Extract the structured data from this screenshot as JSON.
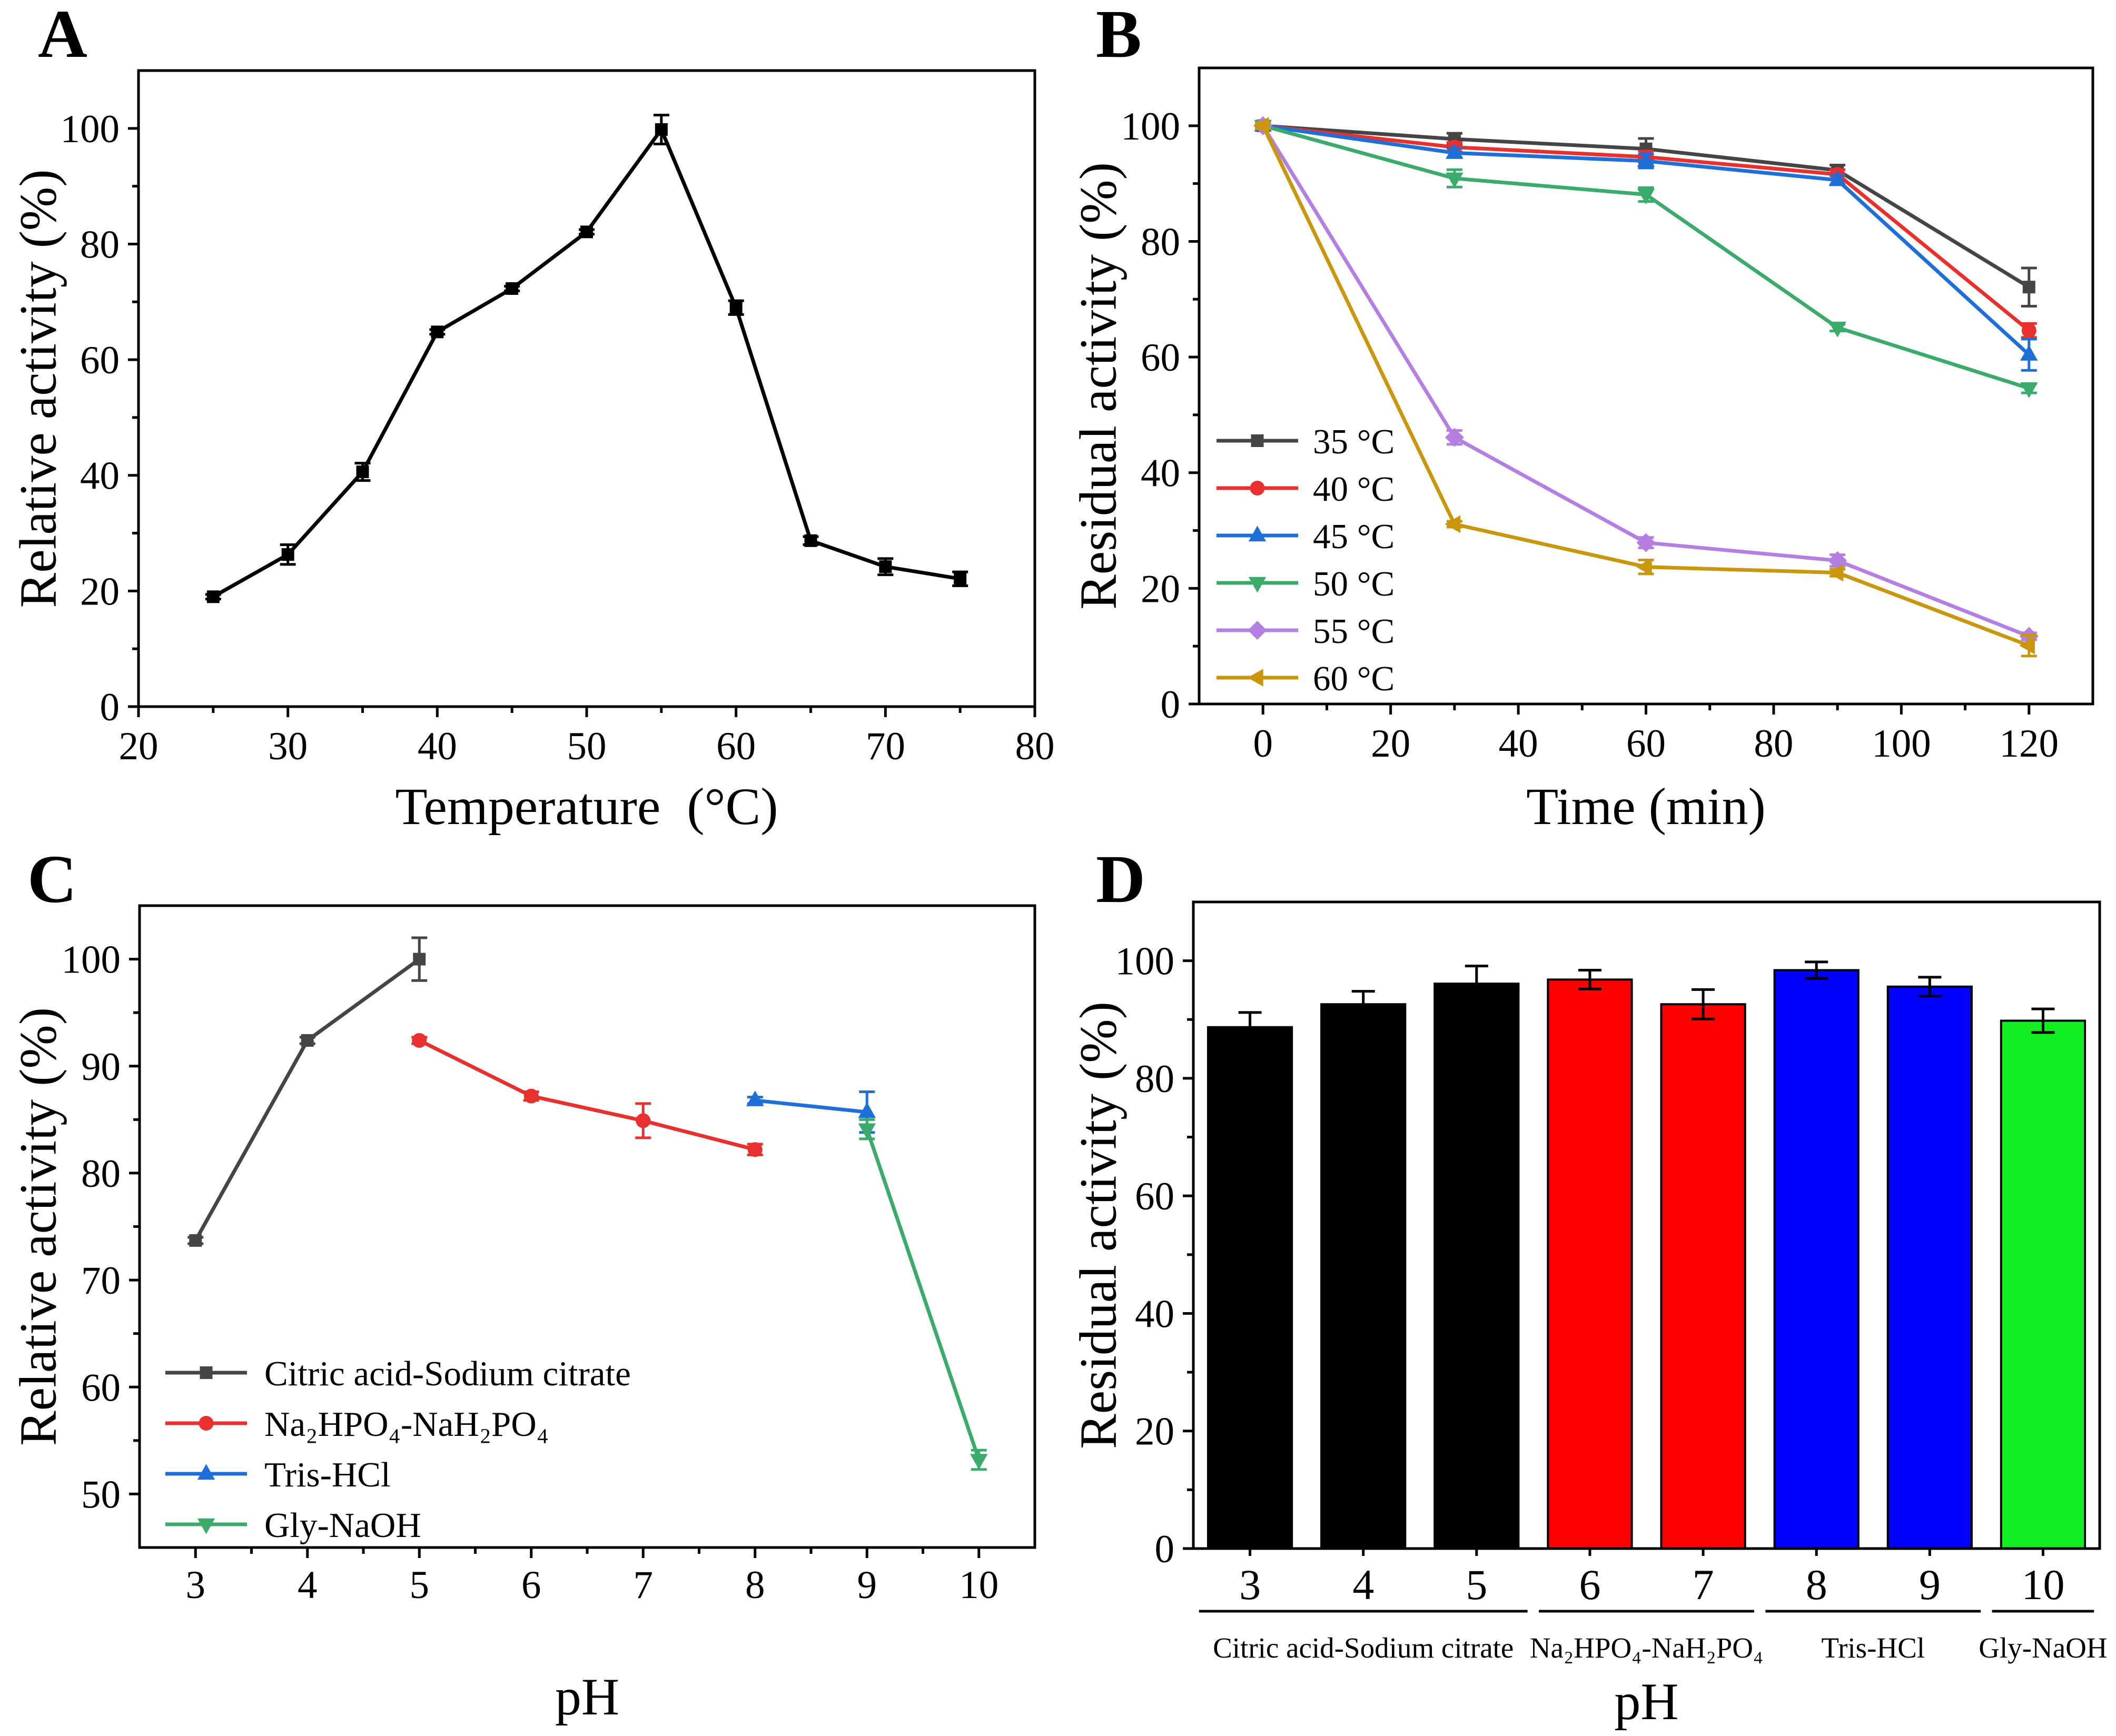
{
  "chart_data": [
    {
      "panel": "A",
      "type": "line",
      "xlabel": "Temperature  (°C)",
      "ylabel": "Relative activity (%)",
      "xlim": [
        20,
        80
      ],
      "ylim": [
        0,
        110
      ],
      "xticks": [
        20,
        30,
        40,
        50,
        60,
        70,
        80
      ],
      "yticks": [
        0,
        20,
        40,
        60,
        80,
        100
      ],
      "grid": false,
      "series": [
        {
          "color": "#000000",
          "marker": "square",
          "x": [
            25,
            30,
            35,
            40,
            45,
            50,
            55,
            60,
            65,
            70,
            75
          ],
          "y": [
            19.0,
            26.3,
            40.6,
            64.8,
            72.3,
            82.1,
            99.8,
            69.0,
            28.7,
            24.2,
            22.1
          ],
          "err": [
            0.4,
            1.7,
            1.5,
            0.4,
            0.4,
            0.4,
            2.5,
            1.2,
            0.7,
            1.4,
            1.2
          ]
        }
      ]
    },
    {
      "panel": "B",
      "type": "line",
      "xlabel": "Time (min)",
      "ylabel": "Residual activity (%)",
      "xlim": [
        -10,
        130
      ],
      "ylim": [
        0,
        110
      ],
      "xticks": [
        0,
        20,
        40,
        60,
        80,
        100,
        120
      ],
      "yticks": [
        0,
        20,
        40,
        60,
        80,
        100
      ],
      "grid": false,
      "legend": "bottom-left",
      "series": [
        {
          "name": "35 °C",
          "color": "#454545",
          "marker": "square",
          "x": [
            0,
            30,
            60,
            90,
            120
          ],
          "y": [
            100,
            97.7,
            96.0,
            92.3,
            72.1
          ],
          "err": [
            0.5,
            1.0,
            1.8,
            0.9,
            3.3
          ]
        },
        {
          "name": "40 °C",
          "color": "#e8302e",
          "marker": "circle",
          "x": [
            0,
            30,
            60,
            90,
            120
          ],
          "y": [
            100,
            96.3,
            94.6,
            91.6,
            64.6
          ],
          "err": [
            0.5,
            0.8,
            1.0,
            0.8,
            1.2
          ]
        },
        {
          "name": "45 °C",
          "color": "#1f6fd8",
          "marker": "triangle-up",
          "x": [
            0,
            30,
            60,
            90,
            120
          ],
          "y": [
            100,
            95.3,
            93.9,
            90.6,
            60.4
          ],
          "err": [
            0.5,
            0.8,
            1.2,
            0.8,
            2.7
          ]
        },
        {
          "name": "50 °C",
          "color": "#3aab6b",
          "marker": "triangle-down",
          "x": [
            0,
            30,
            60,
            90,
            120
          ],
          "y": [
            100,
            90.9,
            88.1,
            65.1,
            54.6
          ],
          "err": [
            0.5,
            1.5,
            1.2,
            0.6,
            0.8
          ]
        },
        {
          "name": "55 °C",
          "color": "#b57ee3",
          "marker": "diamond",
          "x": [
            0,
            30,
            60,
            90,
            120
          ],
          "y": [
            100,
            46.1,
            27.9,
            24.8,
            11.7
          ],
          "err": [
            0.5,
            1.2,
            0.9,
            1.0,
            0.6
          ]
        },
        {
          "name": "60 °C",
          "color": "#c9960c",
          "marker": "triangle-left",
          "x": [
            0,
            30,
            60,
            90,
            120
          ],
          "y": [
            100,
            31.1,
            23.7,
            22.7,
            10.1
          ],
          "err": [
            0.5,
            0.5,
            1.2,
            0.6,
            1.8
          ]
        }
      ]
    },
    {
      "panel": "C",
      "type": "line",
      "xlabel": "pH",
      "ylabel": "Relative activity (%)",
      "xlim": [
        2.5,
        10.5
      ],
      "ylim": [
        45,
        105
      ],
      "xticks": [
        3,
        4,
        5,
        6,
        7,
        8,
        9,
        10
      ],
      "yticks": [
        50,
        60,
        70,
        80,
        90,
        100
      ],
      "grid": false,
      "legend": "bottom-left",
      "series": [
        {
          "name": "Citric acid-Sodium citrate",
          "color": "#454545",
          "marker": "square",
          "x": [
            3,
            4,
            5
          ],
          "y": [
            73.7,
            92.4,
            100.0
          ],
          "err": [
            0.3,
            0.3,
            2.0
          ]
        },
        {
          "name": "Na₂HPO₄-NaH₂PO₄",
          "color": "#e8302e",
          "marker": "circle",
          "x": [
            5,
            6,
            7,
            8
          ],
          "y": [
            92.4,
            87.2,
            84.9,
            82.2
          ],
          "err": [
            0.3,
            0.4,
            1.6,
            0.5
          ]
        },
        {
          "name": "Tris-HCl",
          "color": "#1f6fd8",
          "marker": "triangle-up",
          "x": [
            8,
            9
          ],
          "y": [
            86.8,
            85.7
          ],
          "err": [
            0.3,
            1.9
          ]
        },
        {
          "name": "Gly-NaOH",
          "color": "#3aab6b",
          "marker": "triangle-down",
          "x": [
            9,
            10
          ],
          "y": [
            84.1,
            53.2
          ],
          "err": [
            0.9,
            0.9
          ]
        }
      ]
    },
    {
      "panel": "D",
      "type": "bar",
      "xlabel": "pH",
      "ylabel": "Residual activity (%)",
      "ylim": [
        0,
        110
      ],
      "yticks": [
        0,
        20,
        40,
        60,
        80,
        100
      ],
      "grid": false,
      "categories": [
        "3",
        "4",
        "5",
        "6",
        "7",
        "8",
        "9",
        "10"
      ],
      "values": [
        88.7,
        92.6,
        96.1,
        96.8,
        92.6,
        98.4,
        95.6,
        89.8
      ],
      "err": [
        2.5,
        2.2,
        3.0,
        1.6,
        2.5,
        1.4,
        1.6,
        2.0
      ],
      "groups": [
        {
          "label": "Citric acid-Sodium citrate",
          "start": 0,
          "end": 2,
          "color": "#000000"
        },
        {
          "label": "Na₂HPO₄-NaH₂PO₄",
          "start": 3,
          "end": 4,
          "color": "#ff0000"
        },
        {
          "label": "Tris-HCl",
          "start": 5,
          "end": 6,
          "color": "#0000ff"
        },
        {
          "label": "Gly-NaOH",
          "start": 7,
          "end": 7,
          "color": "#11ee22"
        }
      ]
    }
  ]
}
